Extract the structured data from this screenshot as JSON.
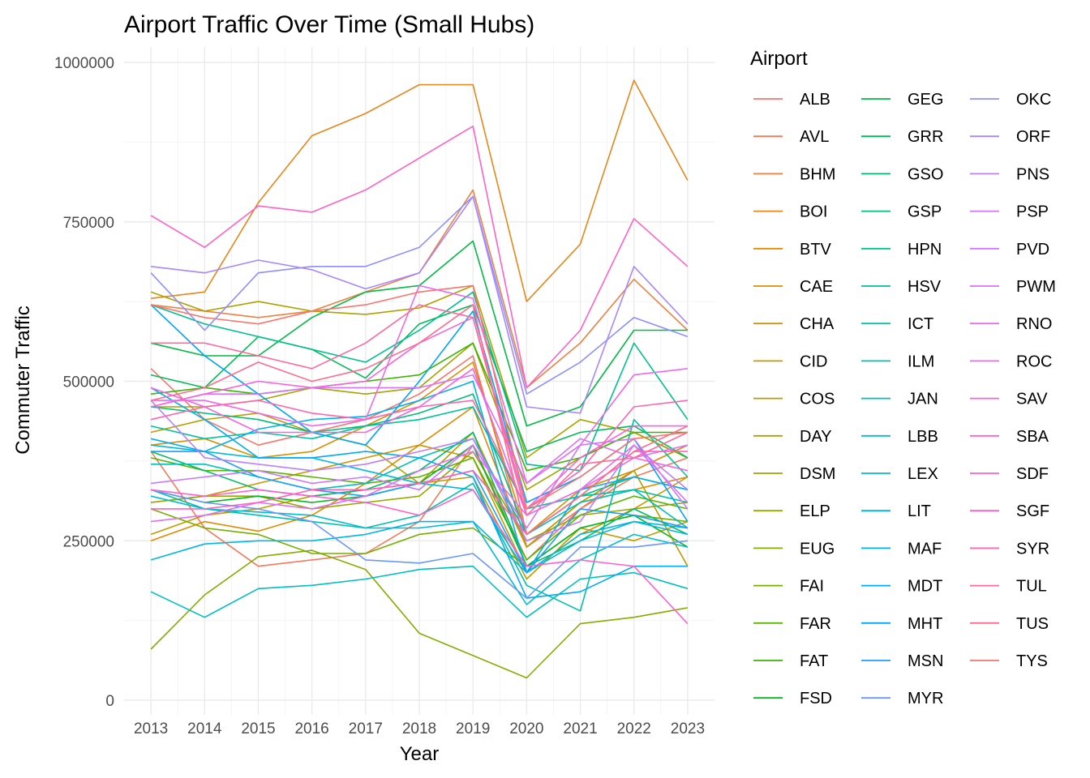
{
  "chart_data": {
    "type": "line",
    "title": "Airport Traffic Over Time (Small Hubs)",
    "xlabel": "Year",
    "ylabel": "Commuter Traffic",
    "legend_title": "Airport",
    "legend_position": "right",
    "grid": true,
    "x": [
      2013,
      2014,
      2015,
      2016,
      2017,
      2018,
      2019,
      2020,
      2021,
      2022,
      2023
    ],
    "ylim": [
      0,
      1000000
    ],
    "yticks": [
      0,
      250000,
      500000,
      750000,
      1000000
    ],
    "series": [
      {
        "name": "ALB",
        "color": "#F8766D",
        "values": [
          520000,
          440000,
          400000,
          420000,
          440000,
          480000,
          540000,
          240000,
          300000,
          360000,
          400000
        ]
      },
      {
        "name": "AVL",
        "color": "#F37B59",
        "values": [
          390000,
          270000,
          210000,
          220000,
          230000,
          280000,
          400000,
          220000,
          300000,
          350000,
          380000
        ]
      },
      {
        "name": "BHM",
        "color": "#ED8141",
        "values": [
          620000,
          610000,
          600000,
          610000,
          640000,
          670000,
          800000,
          490000,
          560000,
          660000,
          580000
        ]
      },
      {
        "name": "BOI",
        "color": "#E7861B",
        "values": [
          630000,
          640000,
          780000,
          885000,
          920000,
          965000,
          965000,
          625000,
          715000,
          972000,
          815000
        ]
      },
      {
        "name": "BTV",
        "color": "#E08B00",
        "values": [
          250000,
          280000,
          265000,
          290000,
          340000,
          400000,
          460000,
          240000,
          310000,
          330000,
          350000
        ]
      },
      {
        "name": "CAE",
        "color": "#D89000",
        "values": [
          400000,
          410000,
          380000,
          390000,
          430000,
          470000,
          530000,
          260000,
          330000,
          360000,
          400000
        ]
      },
      {
        "name": "CHA",
        "color": "#CF9400",
        "values": [
          310000,
          320000,
          340000,
          360000,
          380000,
          400000,
          380000,
          200000,
          260000,
          300000,
          350000
        ]
      },
      {
        "name": "CID",
        "color": "#C59900",
        "values": [
          260000,
          290000,
          300000,
          320000,
          330000,
          340000,
          350000,
          190000,
          270000,
          250000,
          280000
        ]
      },
      {
        "name": "COS",
        "color": "#BB9D00",
        "values": [
          420000,
          440000,
          450000,
          420000,
          400000,
          340000,
          420000,
          240000,
          310000,
          360000,
          210000
        ]
      },
      {
        "name": "DAY",
        "color": "#AFA100",
        "values": [
          640000,
          610000,
          625000,
          610000,
          605000,
          615000,
          650000,
          380000,
          440000,
          420000,
          380000
        ]
      },
      {
        "name": "DSM",
        "color": "#A3A500",
        "values": [
          460000,
          460000,
          470000,
          490000,
          480000,
          490000,
          560000,
          330000,
          380000,
          420000,
          380000
        ]
      },
      {
        "name": "ELP",
        "color": "#95A900",
        "values": [
          310000,
          320000,
          320000,
          300000,
          310000,
          320000,
          390000,
          250000,
          290000,
          300000,
          310000
        ]
      },
      {
        "name": "EUG",
        "color": "#86AC00",
        "values": [
          80000,
          165000,
          225000,
          235000,
          205000,
          105000,
          70000,
          35000,
          120000,
          130000,
          145000
        ]
      },
      {
        "name": "FAI",
        "color": "#75AF00",
        "values": [
          300000,
          270000,
          260000,
          230000,
          230000,
          260000,
          270000,
          210000,
          270000,
          290000,
          280000
        ]
      },
      {
        "name": "FAR",
        "color": "#5EB300",
        "values": [
          380000,
          360000,
          360000,
          350000,
          340000,
          350000,
          380000,
          220000,
          290000,
          320000,
          300000
        ]
      },
      {
        "name": "FAT",
        "color": "#39B600",
        "values": [
          480000,
          490000,
          480000,
          490000,
          500000,
          510000,
          560000,
          360000,
          380000,
          420000,
          420000
        ]
      },
      {
        "name": "FSD",
        "color": "#00B81F",
        "values": [
          330000,
          310000,
          320000,
          310000,
          320000,
          340000,
          400000,
          210000,
          270000,
          290000,
          240000
        ]
      },
      {
        "name": "GEG",
        "color": "#00BA42",
        "values": [
          560000,
          540000,
          540000,
          600000,
          640000,
          650000,
          720000,
          430000,
          460000,
          580000,
          580000
        ]
      },
      {
        "name": "GRR",
        "color": "#00BC59",
        "values": [
          510000,
          490000,
          570000,
          550000,
          505000,
          590000,
          620000,
          390000,
          420000,
          430000,
          380000
        ]
      },
      {
        "name": "GSO",
        "color": "#00BE6C",
        "values": [
          390000,
          360000,
          330000,
          320000,
          330000,
          360000,
          420000,
          210000,
          250000,
          300000,
          260000
        ]
      },
      {
        "name": "GSP",
        "color": "#00BF7D",
        "values": [
          460000,
          450000,
          440000,
          420000,
          430000,
          450000,
          480000,
          260000,
          320000,
          350000,
          330000
        ]
      },
      {
        "name": "HPN",
        "color": "#00C08D",
        "values": [
          620000,
          590000,
          570000,
          550000,
          530000,
          580000,
          640000,
          370000,
          360000,
          560000,
          440000
        ]
      },
      {
        "name": "HSV",
        "color": "#00C19C",
        "values": [
          430000,
          410000,
          420000,
          410000,
          430000,
          440000,
          460000,
          300000,
          320000,
          330000,
          310000
        ]
      },
      {
        "name": "ICT",
        "color": "#00C1AA",
        "values": [
          330000,
          300000,
          290000,
          280000,
          270000,
          290000,
          340000,
          180000,
          140000,
          440000,
          350000
        ]
      },
      {
        "name": "ILM",
        "color": "#00C0B8",
        "values": [
          370000,
          370000,
          350000,
          330000,
          340000,
          380000,
          410000,
          260000,
          310000,
          330000,
          270000
        ]
      },
      {
        "name": "JAN",
        "color": "#00BFC4",
        "values": [
          170000,
          130000,
          175000,
          180000,
          190000,
          205000,
          210000,
          130000,
          190000,
          200000,
          175000
        ]
      },
      {
        "name": "LBB",
        "color": "#00BDD0",
        "values": [
          320000,
          300000,
          295000,
          290000,
          270000,
          270000,
          280000,
          150000,
          220000,
          260000,
          240000
        ]
      },
      {
        "name": "LEX",
        "color": "#00BADB",
        "values": [
          400000,
          390000,
          380000,
          380000,
          360000,
          340000,
          330000,
          200000,
          260000,
          280000,
          260000
        ]
      },
      {
        "name": "LIT",
        "color": "#00B6E5",
        "values": [
          220000,
          245000,
          250000,
          250000,
          260000,
          280000,
          280000,
          200000,
          250000,
          280000,
          270000
        ]
      },
      {
        "name": "MAF",
        "color": "#00B1EE",
        "values": [
          410000,
          390000,
          425000,
          440000,
          445000,
          470000,
          500000,
          200000,
          330000,
          350000,
          330000
        ]
      },
      {
        "name": "MDT",
        "color": "#00ACF6",
        "values": [
          490000,
          440000,
          380000,
          380000,
          390000,
          380000,
          350000,
          160000,
          170000,
          210000,
          210000
        ]
      },
      {
        "name": "MHT",
        "color": "#00A5FC",
        "values": [
          620000,
          540000,
          480000,
          420000,
          400000,
          500000,
          610000,
          310000,
          350000,
          410000,
          280000
        ]
      },
      {
        "name": "MSN",
        "color": "#1C9EFF",
        "values": [
          390000,
          390000,
          350000,
          330000,
          320000,
          340000,
          360000,
          200000,
          300000,
          290000,
          270000
        ]
      },
      {
        "name": "MYR",
        "color": "#6A97FF",
        "values": [
          330000,
          310000,
          300000,
          280000,
          220000,
          215000,
          230000,
          160000,
          240000,
          240000,
          250000
        ]
      },
      {
        "name": "OKC",
        "color": "#8E8FFF",
        "values": [
          670000,
          580000,
          670000,
          680000,
          680000,
          710000,
          790000,
          480000,
          530000,
          600000,
          570000
        ]
      },
      {
        "name": "ORF",
        "color": "#A787FF",
        "values": [
          680000,
          670000,
          690000,
          675000,
          645000,
          670000,
          790000,
          460000,
          450000,
          680000,
          590000
        ]
      },
      {
        "name": "PNS",
        "color": "#BA80FF",
        "values": [
          470000,
          380000,
          370000,
          360000,
          370000,
          390000,
          410000,
          250000,
          280000,
          400000,
          330000
        ]
      },
      {
        "name": "PSP",
        "color": "#CA79FF",
        "values": [
          340000,
          350000,
          360000,
          340000,
          350000,
          330000,
          400000,
          270000,
          400000,
          410000,
          300000
        ]
      },
      {
        "name": "PVD",
        "color": "#D774FD",
        "values": [
          460000,
          480000,
          480000,
          490000,
          490000,
          490000,
          510000,
          340000,
          410000,
          380000,
          400000
        ]
      },
      {
        "name": "PWM",
        "color": "#E26EF7",
        "values": [
          280000,
          290000,
          310000,
          300000,
          320000,
          360000,
          390000,
          290000,
          330000,
          400000,
          310000
        ]
      },
      {
        "name": "RNO",
        "color": "#EB6AEE",
        "values": [
          470000,
          470000,
          450000,
          430000,
          440000,
          650000,
          630000,
          340000,
          400000,
          510000,
          520000
        ]
      },
      {
        "name": "ROC",
        "color": "#F365E6",
        "values": [
          490000,
          460000,
          420000,
          420000,
          420000,
          460000,
          520000,
          290000,
          330000,
          380000,
          360000
        ]
      },
      {
        "name": "SAV",
        "color": "#F962DD",
        "values": [
          460000,
          480000,
          500000,
          490000,
          500000,
          560000,
          600000,
          300000,
          380000,
          430000,
          430000
        ]
      },
      {
        "name": "SBA",
        "color": "#FD61D3",
        "values": [
          330000,
          320000,
          330000,
          320000,
          310000,
          290000,
          330000,
          210000,
          220000,
          210000,
          120000
        ]
      },
      {
        "name": "SDF",
        "color": "#FF61C9",
        "values": [
          760000,
          710000,
          775000,
          765000,
          800000,
          850000,
          900000,
          490000,
          580000,
          755000,
          680000
        ]
      },
      {
        "name": "SGF",
        "color": "#FF62BC",
        "values": [
          300000,
          300000,
          310000,
          330000,
          330000,
          340000,
          360000,
          260000,
          320000,
          390000,
          390000
        ]
      },
      {
        "name": "SYR",
        "color": "#FF65AE",
        "values": [
          440000,
          460000,
          470000,
          450000,
          440000,
          460000,
          470000,
          300000,
          360000,
          460000,
          470000
        ]
      },
      {
        "name": "TUL",
        "color": "#FF689F",
        "values": [
          560000,
          560000,
          540000,
          520000,
          560000,
          620000,
          600000,
          290000,
          370000,
          380000,
          420000
        ]
      },
      {
        "name": "TUS",
        "color": "#FC6D8F",
        "values": [
          470000,
          490000,
          530000,
          500000,
          520000,
          560000,
          620000,
          260000,
          320000,
          390000,
          430000
        ]
      },
      {
        "name": "TYS",
        "color": "#F8766D",
        "values": [
          620000,
          600000,
          590000,
          610000,
          620000,
          640000,
          650000,
          300000,
          350000,
          410000,
          420000
        ]
      }
    ]
  }
}
